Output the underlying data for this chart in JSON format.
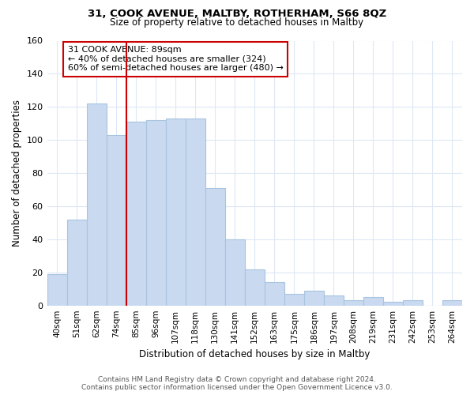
{
  "title": "31, COOK AVENUE, MALTBY, ROTHERHAM, S66 8QZ",
  "subtitle": "Size of property relative to detached houses in Maltby",
  "xlabel": "Distribution of detached houses by size in Maltby",
  "ylabel": "Number of detached properties",
  "bar_labels": [
    "40sqm",
    "51sqm",
    "62sqm",
    "74sqm",
    "85sqm",
    "96sqm",
    "107sqm",
    "118sqm",
    "130sqm",
    "141sqm",
    "152sqm",
    "163sqm",
    "175sqm",
    "186sqm",
    "197sqm",
    "208sqm",
    "219sqm",
    "231sqm",
    "242sqm",
    "253sqm",
    "264sqm"
  ],
  "bar_values": [
    19,
    52,
    122,
    103,
    111,
    112,
    113,
    113,
    71,
    40,
    22,
    14,
    7,
    9,
    6,
    3,
    5,
    2,
    3,
    0,
    3
  ],
  "bar_color": "#c9d9f0",
  "bar_edge_color": "#a8c4e0",
  "marker_index": 4,
  "marker_color": "#cc0000",
  "annotation_text": "31 COOK AVENUE: 89sqm\n← 40% of detached houses are smaller (324)\n60% of semi-detached houses are larger (480) →",
  "annotation_box_color": "#ffffff",
  "annotation_box_edge": "#cc0000",
  "ylim": [
    0,
    160
  ],
  "yticks": [
    0,
    20,
    40,
    60,
    80,
    100,
    120,
    140,
    160
  ],
  "footer": "Contains HM Land Registry data © Crown copyright and database right 2024.\nContains public sector information licensed under the Open Government Licence v3.0.",
  "background_color": "#ffffff",
  "grid_color": "#dde8f5"
}
